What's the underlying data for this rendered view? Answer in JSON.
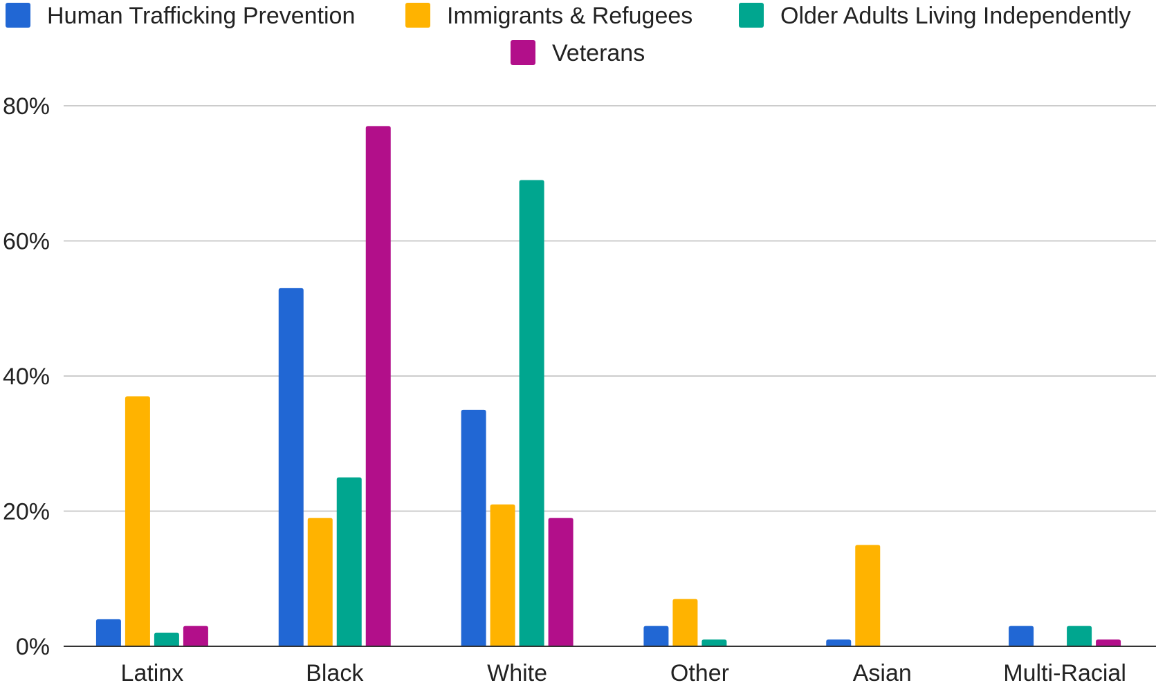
{
  "chart_data": {
    "type": "bar",
    "title": "",
    "xlabel": "",
    "ylabel": "",
    "categories": [
      "Latinx",
      "Black",
      "White",
      "Other",
      "Asian",
      "Multi-Racial"
    ],
    "series": [
      {
        "name": "Human Trafficking Prevention",
        "color": "#2167d4",
        "values": [
          4,
          53,
          35,
          3,
          1,
          3
        ]
      },
      {
        "name": "Immigrants & Refugees",
        "color": "#ffb300",
        "values": [
          37,
          19,
          21,
          7,
          15,
          0
        ]
      },
      {
        "name": "Older Adults Living Independently",
        "color": "#00a68f",
        "values": [
          2,
          25,
          69,
          1,
          0,
          3
        ]
      },
      {
        "name": "Veterans",
        "color": "#b20f8a",
        "values": [
          3,
          77,
          19,
          0,
          0,
          1
        ]
      }
    ],
    "ylim": [
      0,
      80
    ],
    "yticks": [
      0,
      20,
      40,
      60,
      80
    ],
    "ytick_labels": [
      "0%",
      "20%",
      "40%",
      "60%",
      "80%"
    ],
    "grid": true,
    "legend_position": "top"
  }
}
